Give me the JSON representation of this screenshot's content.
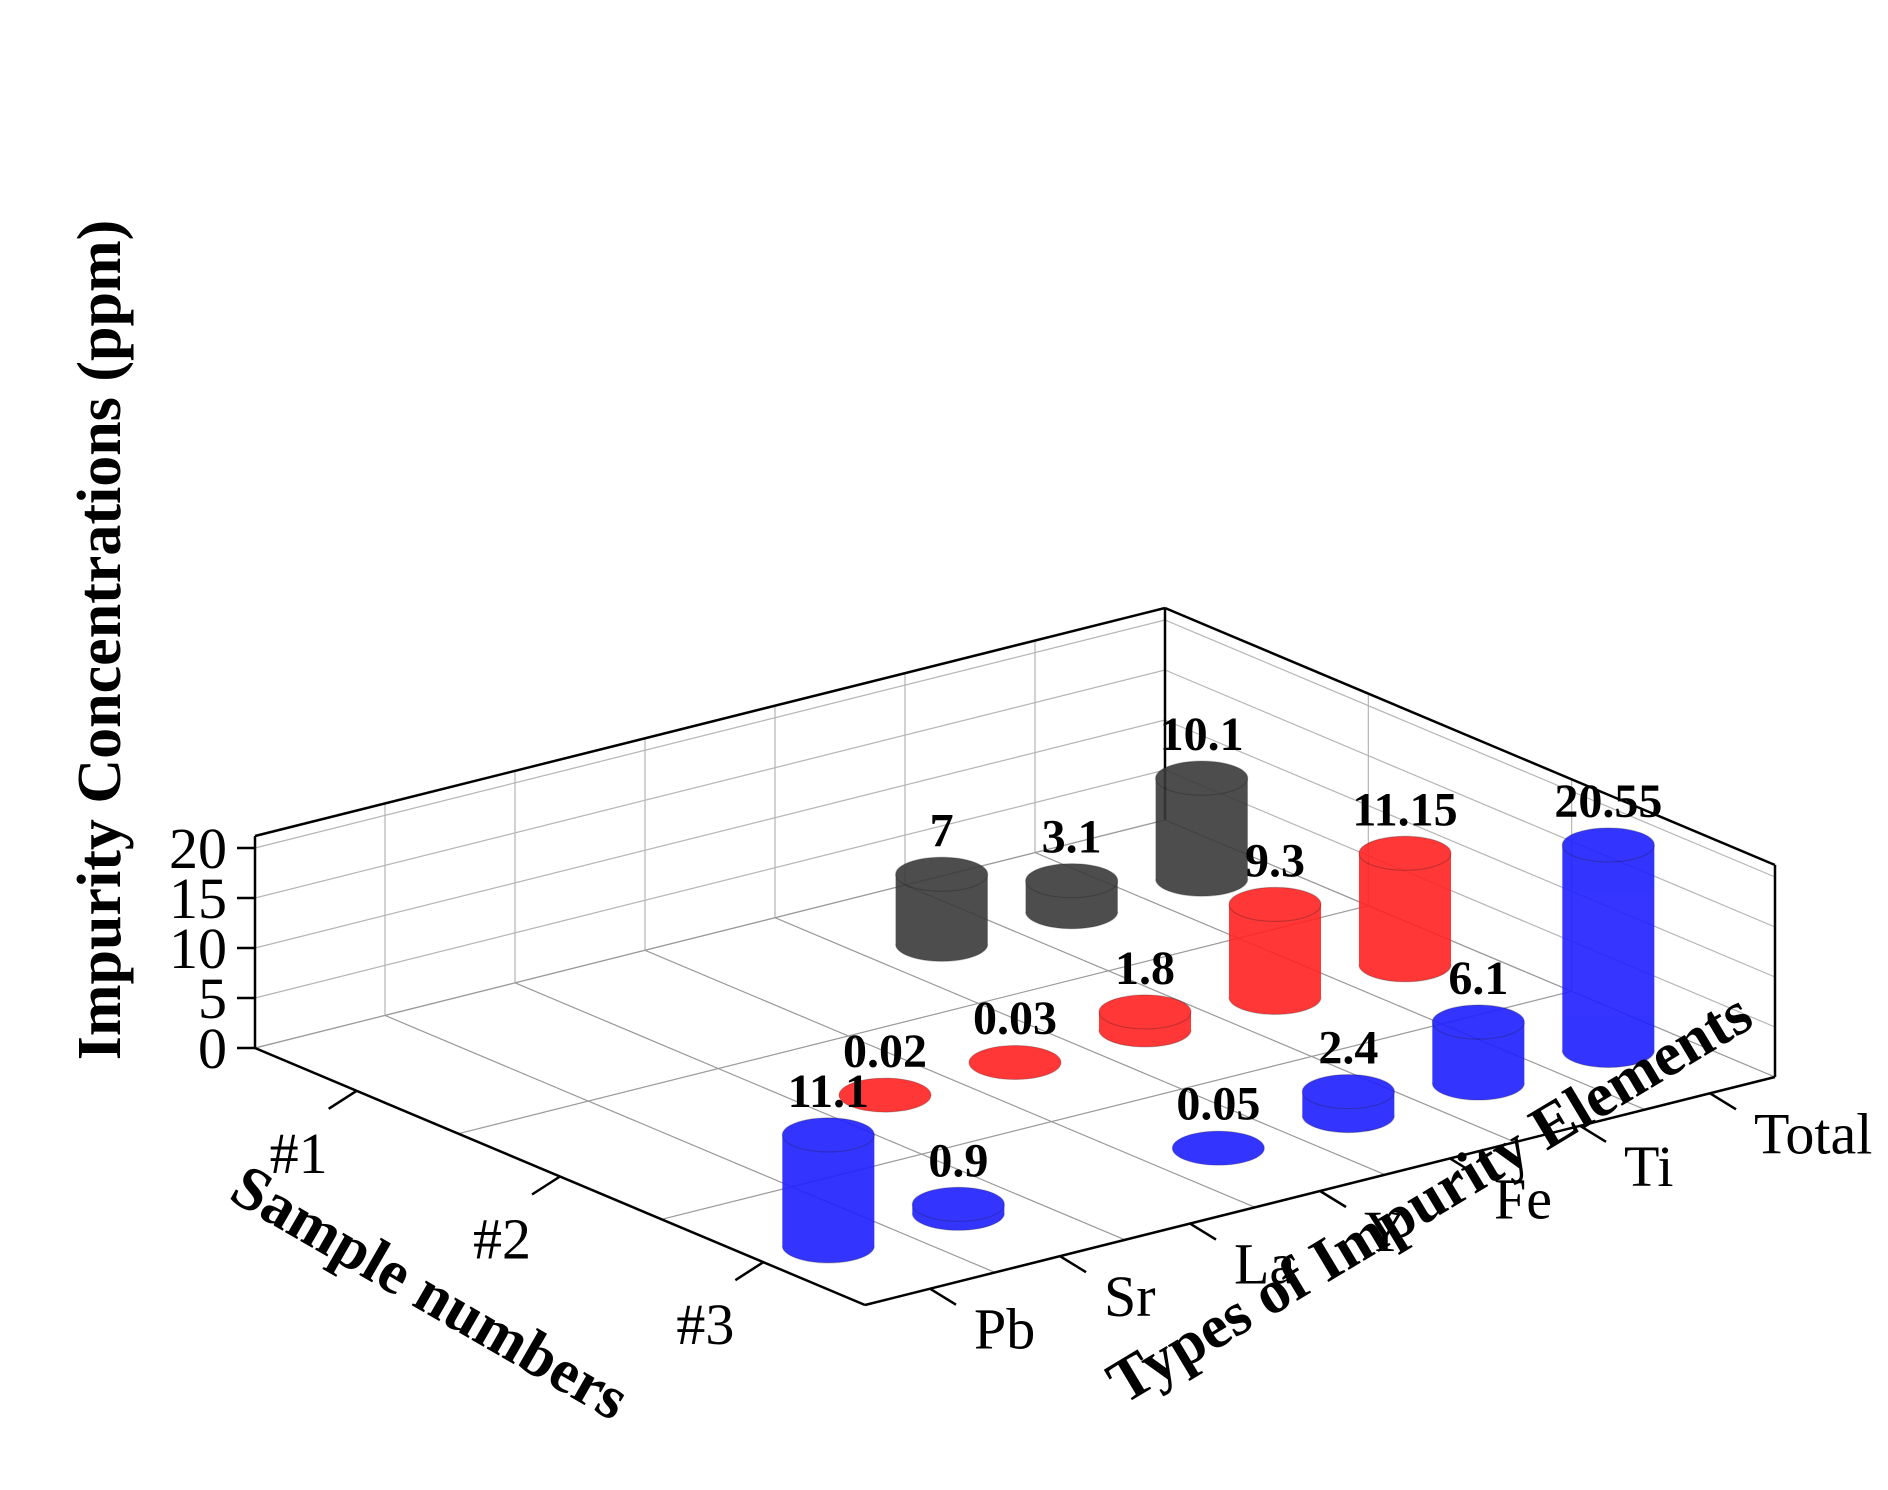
{
  "chart_data": {
    "type": "bar",
    "subtype": "3d-cylinder",
    "title": "",
    "x_categories": [
      "#1",
      "#2",
      "#3"
    ],
    "y_categories": [
      "Pb",
      "Sr",
      "La",
      "Y",
      "Fe",
      "Ti",
      "Total"
    ],
    "xlabel": "Sample numbers",
    "ylabel": "Types of Impurity Elements",
    "zlabel": "Impurity Concentrations (ppm)",
    "zlim": [
      0,
      20
    ],
    "zticks": [
      0,
      5,
      10,
      15,
      20
    ],
    "grid": true,
    "colors": {
      "#1": "#3a3a3a",
      "#2": "#ff2222",
      "#3": "#1f1fff"
    },
    "points": [
      {
        "sample": "#1",
        "element": "Total",
        "value": 10.1,
        "label": "10.1"
      },
      {
        "sample": "#1",
        "element": "Fe",
        "value": 7,
        "label": "7"
      },
      {
        "sample": "#1",
        "element": "Ti",
        "value": 3.1,
        "label": "3.1"
      },
      {
        "sample": "#2",
        "element": "Total",
        "value": 11.15,
        "label": "11.15"
      },
      {
        "sample": "#2",
        "element": "Fe",
        "value": 1.8,
        "label": "1.8"
      },
      {
        "sample": "#2",
        "element": "Y",
        "value": 0.03,
        "label": "0.03"
      },
      {
        "sample": "#2",
        "element": "La",
        "value": 0.02,
        "label": "0.02"
      },
      {
        "sample": "#2",
        "element": "Ti",
        "value": 9.3,
        "label": "9.3"
      },
      {
        "sample": "#3",
        "element": "Total",
        "value": 20.55,
        "label": "20.55"
      },
      {
        "sample": "#3",
        "element": "Fe",
        "value": 2.4,
        "label": "2.4"
      },
      {
        "sample": "#3",
        "element": "Y",
        "value": 0.05,
        "label": "0.05"
      },
      {
        "sample": "#3",
        "element": "Ti",
        "value": 6.1,
        "label": "6.1"
      },
      {
        "sample": "#3",
        "element": "Pb",
        "value": 11.1,
        "label": "11.1"
      },
      {
        "sample": "#3",
        "element": "Sr",
        "value": 0.9,
        "label": "0.9"
      }
    ]
  }
}
